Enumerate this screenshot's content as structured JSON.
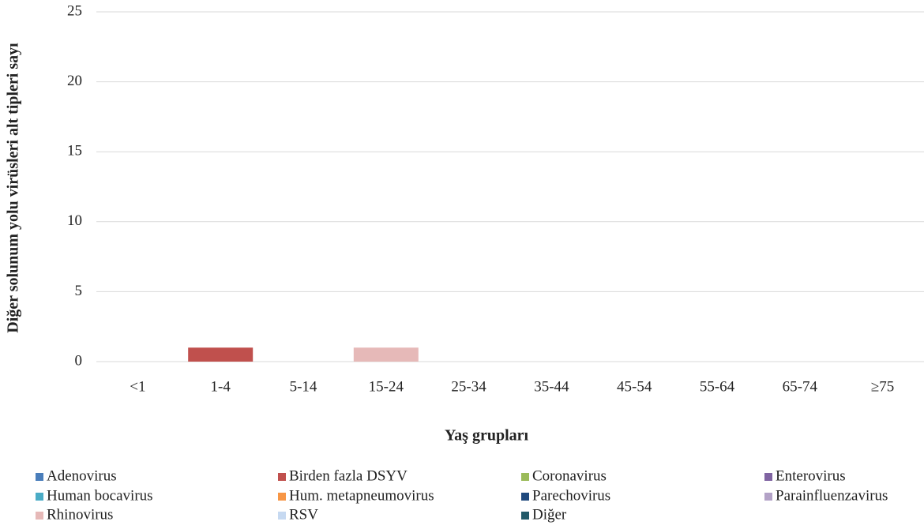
{
  "chart_data": {
    "type": "stacked_bar",
    "x_label": "Yaş grupları",
    "y_label": "Diğer solunum yolu virüsleri alt tipleri sayı",
    "categories": [
      "<1",
      "1-4",
      "5-14",
      "15-24",
      "25-34",
      "35-44",
      "45-54",
      "55-64",
      "65-74",
      "≥75"
    ],
    "series": [
      {
        "name": "Adenovirus",
        "color": "#4a7ebb",
        "values": [
          0,
          0,
          0,
          0,
          0,
          0,
          0,
          0,
          0,
          0
        ]
      },
      {
        "name": "Birden fazla DSYV",
        "color": "#c0504d",
        "values": [
          0,
          1,
          0,
          0,
          0,
          0,
          0,
          0,
          0,
          0
        ]
      },
      {
        "name": "Coronavirus",
        "color": "#9bbb59",
        "values": [
          0,
          0,
          0,
          0,
          0,
          0,
          0,
          0,
          0,
          0
        ]
      },
      {
        "name": "Enterovirus",
        "color": "#8064a2",
        "values": [
          0,
          0,
          0,
          0,
          0,
          0,
          0,
          0,
          0,
          0
        ]
      },
      {
        "name": "Human bocavirus",
        "color": "#4bacc6",
        "values": [
          0,
          0,
          0,
          0,
          0,
          0,
          0,
          0,
          0,
          0
        ]
      },
      {
        "name": "Hum. metapneumovirus",
        "color": "#f79646",
        "values": [
          0,
          0,
          0,
          0,
          0,
          0,
          0,
          0,
          0,
          0
        ]
      },
      {
        "name": "Parechovirus",
        "color": "#1f497d",
        "values": [
          0,
          0,
          0,
          0,
          0,
          0,
          0,
          0,
          0,
          0
        ]
      },
      {
        "name": "Parainfluenzavirus",
        "color": "#b3a2c7",
        "values": [
          0,
          0,
          0,
          0,
          0,
          0,
          0,
          0,
          0,
          0
        ]
      },
      {
        "name": "Rhinovirus",
        "color": "#e6b9b8",
        "values": [
          0,
          0,
          0,
          1,
          0,
          0,
          0,
          0,
          0,
          0
        ]
      },
      {
        "name": "RSV",
        "color": "#c6d9f1",
        "values": [
          0,
          0,
          0,
          0,
          0,
          0,
          0,
          0,
          0,
          0
        ]
      },
      {
        "name": "Diğer",
        "color": "#215968",
        "values": [
          0,
          0,
          0,
          0,
          0,
          0,
          0,
          0,
          0,
          0
        ]
      }
    ],
    "ylim": [
      0,
      25
    ],
    "yticks": [
      0,
      5,
      10,
      15,
      20,
      25
    ],
    "grid": true
  }
}
